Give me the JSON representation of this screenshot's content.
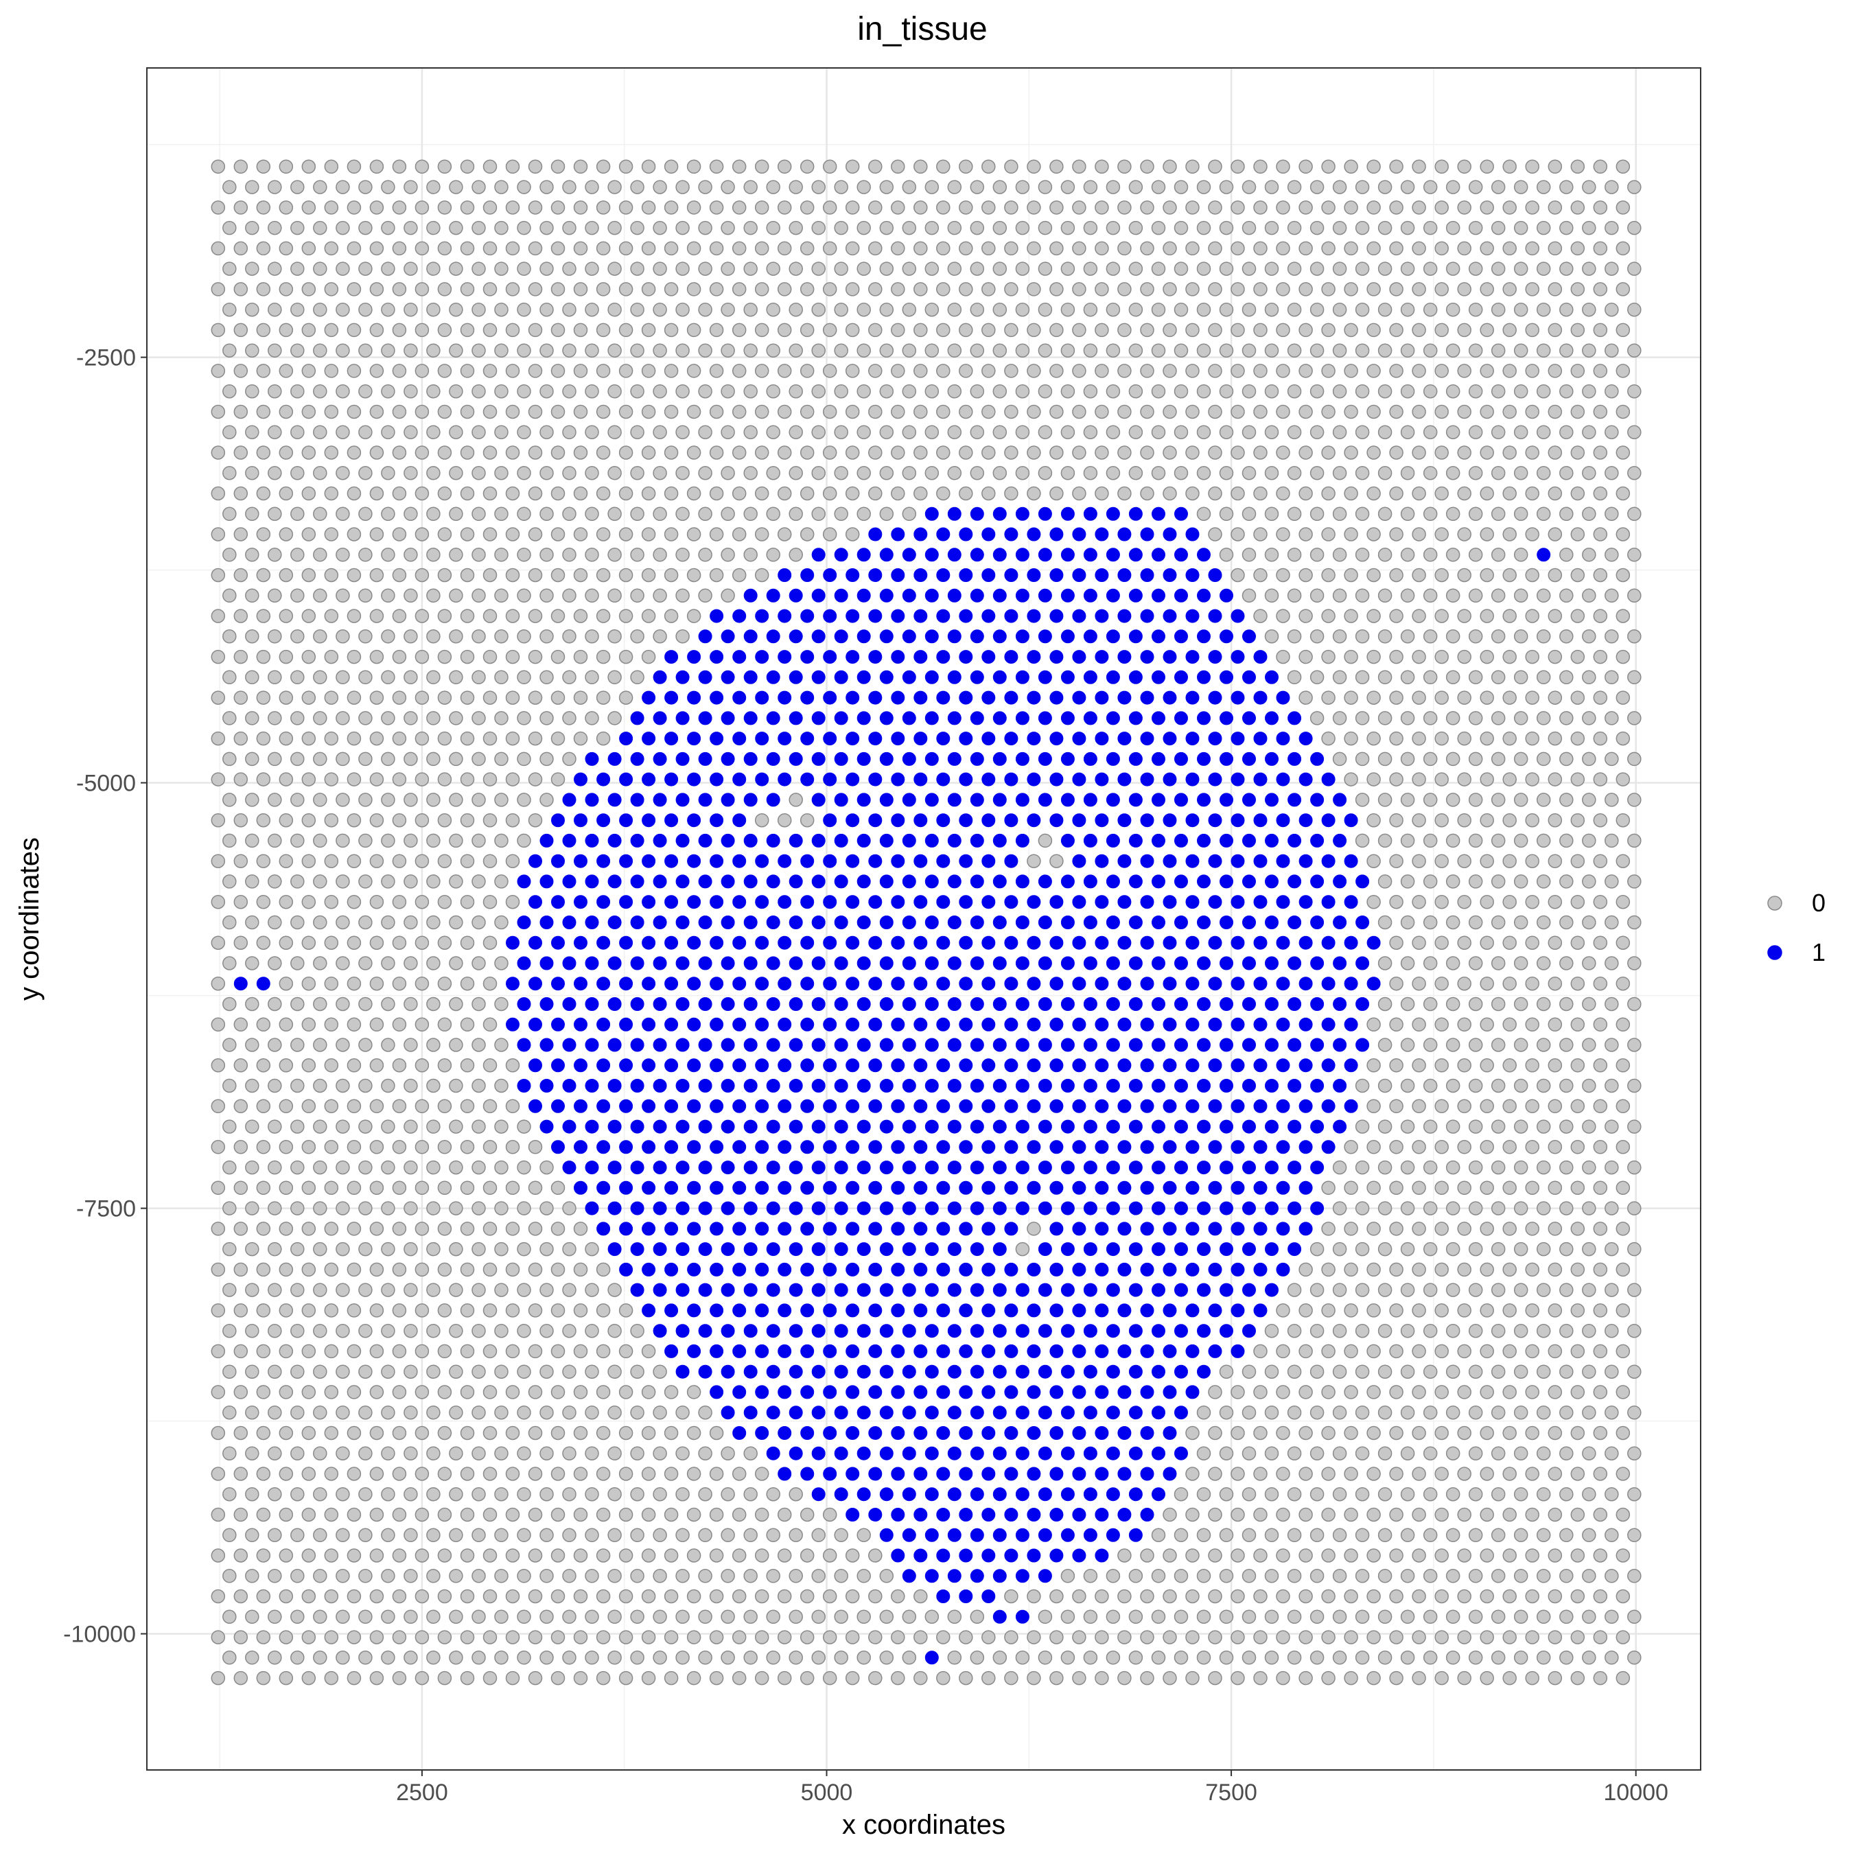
{
  "chart_data": {
    "type": "scatter",
    "title": "in_tissue",
    "xlabel": "x coordinates",
    "ylabel": "y coordinates",
    "xlim": [
      800,
      10400
    ],
    "ylim": [
      -10800,
      -800
    ],
    "x_ticks": [
      {
        "value": 2500,
        "label": "2500"
      },
      {
        "value": 5000,
        "label": "5000"
      },
      {
        "value": 7500,
        "label": "7500"
      },
      {
        "value": 10000,
        "label": "10000"
      }
    ],
    "y_ticks": [
      {
        "value": -2500,
        "label": "-2500"
      },
      {
        "value": -5000,
        "label": "-5000"
      },
      {
        "value": -7500,
        "label": "-7500"
      },
      {
        "value": -10000,
        "label": "-10000"
      }
    ],
    "grid": true,
    "legend_position": "right",
    "legend": [
      {
        "label": "0",
        "color": "#c8c8c8",
        "stroke": "#8a8a8a"
      },
      {
        "label": "1",
        "color": "#0000ee",
        "stroke": "#0000ee"
      }
    ],
    "spot_grid": {
      "x_min": 1240,
      "x_max": 10000,
      "x_step": 140,
      "y_top": -1380,
      "y_bottom": -10300,
      "y_step": 120,
      "odd_row_x_shift": 70
    },
    "tissue_region": {
      "boundary": [
        [
          5650,
          -3380
        ],
        [
          6200,
          -3380
        ],
        [
          6800,
          -3300
        ],
        [
          7250,
          -3380
        ],
        [
          7600,
          -3900
        ],
        [
          7900,
          -4450
        ],
        [
          8250,
          -5200
        ],
        [
          8420,
          -6050
        ],
        [
          8300,
          -6800
        ],
        [
          8000,
          -7600
        ],
        [
          7700,
          -8150
        ],
        [
          7350,
          -8600
        ],
        [
          7150,
          -9050
        ],
        [
          6950,
          -9500
        ],
        [
          6500,
          -9600
        ],
        [
          6150,
          -9750
        ],
        [
          5700,
          -9900
        ],
        [
          5250,
          -9350
        ],
        [
          4800,
          -9150
        ],
        [
          4350,
          -8750
        ],
        [
          3900,
          -8250
        ],
        [
          3450,
          -7500
        ],
        [
          3100,
          -6800
        ],
        [
          3000,
          -6200
        ],
        [
          3100,
          -5600
        ],
        [
          3550,
          -4850
        ],
        [
          4100,
          -4150
        ],
        [
          4700,
          -3750
        ]
      ],
      "extra_in_tissue": [
        [
          1440,
          -6220
        ],
        [
          9450,
          -3620
        ],
        [
          6150,
          -9900
        ],
        [
          5620,
          -10180
        ]
      ],
      "holes": [
        [
          4800,
          -5150
        ],
        [
          4550,
          -5250
        ],
        [
          6250,
          -7680
        ],
        [
          6350,
          -5400
        ]
      ]
    }
  }
}
